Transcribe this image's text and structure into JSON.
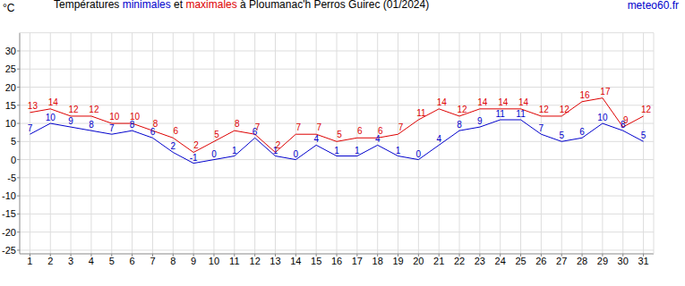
{
  "chart_data": {
    "type": "line",
    "title": "Températures minimales et maximales à Ploumanac'h Perros Guirec (01/2024)",
    "y_label": "°C",
    "annotations": [
      "meteo60.fr"
    ],
    "x": [
      1,
      2,
      3,
      4,
      5,
      6,
      7,
      8,
      9,
      10,
      11,
      12,
      13,
      14,
      15,
      16,
      17,
      18,
      19,
      20,
      21,
      22,
      23,
      24,
      25,
      26,
      27,
      28,
      29,
      30,
      31
    ],
    "series": [
      {
        "name": "minimales",
        "color": "#0000cc",
        "values": [
          7,
          10,
          9,
          8,
          7,
          8,
          6,
          2,
          -1,
          0,
          1,
          6,
          1,
          0,
          4,
          1,
          1,
          4,
          1,
          0,
          4,
          8,
          9,
          11,
          11,
          7,
          5,
          6,
          10,
          8,
          5
        ]
      },
      {
        "name": "maximales",
        "color": "#dd0000",
        "values": [
          13,
          14,
          12,
          12,
          10,
          10,
          8,
          6,
          2,
          5,
          8,
          7,
          2,
          7,
          7,
          5,
          6,
          6,
          7,
          11,
          14,
          12,
          14,
          14,
          14,
          12,
          12,
          16,
          17,
          9,
          12
        ]
      }
    ],
    "xlim": [
      0.5,
      31.5
    ],
    "xticks": [
      1,
      2,
      3,
      4,
      5,
      6,
      7,
      8,
      9,
      10,
      11,
      12,
      13,
      14,
      15,
      16,
      17,
      18,
      19,
      20,
      21,
      22,
      23,
      24,
      25,
      26,
      27,
      28,
      29,
      30,
      31
    ],
    "ylim": [
      -26,
      35
    ],
    "yticks": [
      -25,
      -20,
      -15,
      -10,
      -5,
      0,
      5,
      10,
      15,
      20,
      25,
      30
    ],
    "grid": true,
    "data_labels": true
  }
}
